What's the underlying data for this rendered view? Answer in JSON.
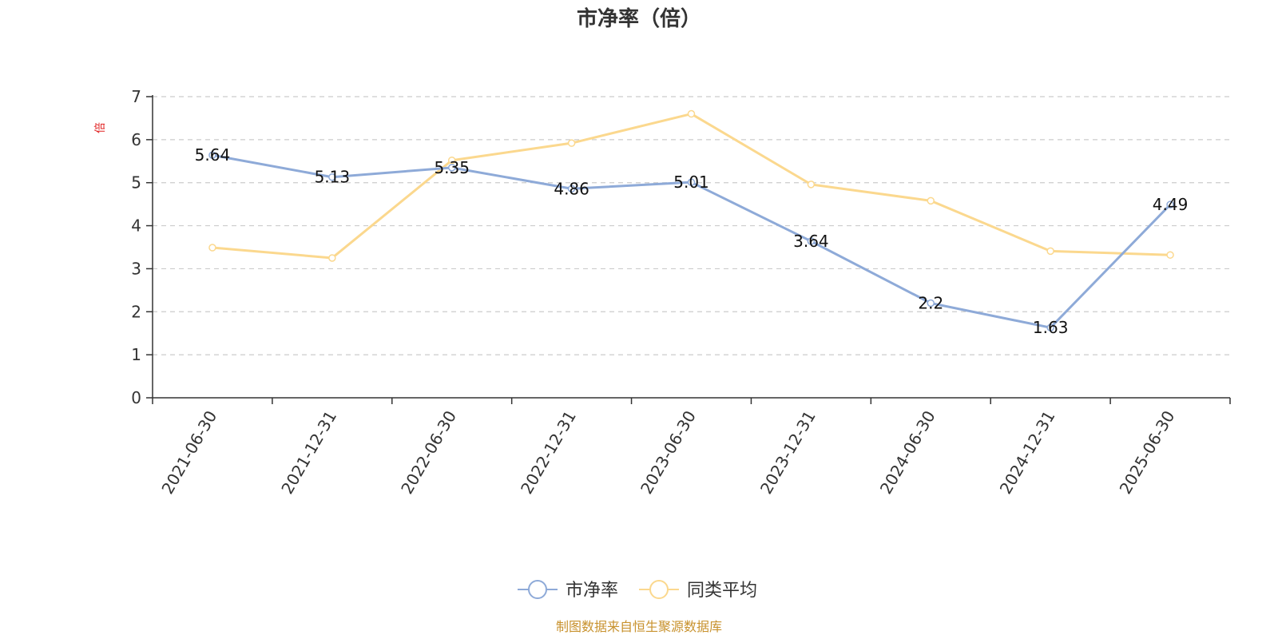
{
  "chart_data": {
    "type": "line",
    "title": "市净率（倍）",
    "ylabel": "倍",
    "ylim": [
      0,
      7
    ],
    "yticks": [
      0,
      1,
      2,
      3,
      4,
      5,
      6,
      7
    ],
    "grid": true,
    "legend_position": "bottom",
    "categories": [
      "2021-06-30",
      "2021-12-31",
      "2022-06-30",
      "2022-12-31",
      "2023-06-30",
      "2023-12-31",
      "2024-06-30",
      "2024-12-31",
      "2025-06-30"
    ],
    "series": [
      {
        "name": "市净率",
        "color": "#8eaad8",
        "values": [
          5.64,
          5.13,
          5.35,
          4.86,
          5.01,
          3.64,
          2.2,
          1.63,
          4.49
        ],
        "labels": [
          "5.64",
          "5.13",
          "5.35",
          "4.86",
          "5.01",
          "3.64",
          "2.2",
          "1.63",
          "4.49"
        ]
      },
      {
        "name": "同类平均",
        "color": "#fbd88e",
        "values": [
          3.49,
          3.25,
          5.52,
          5.92,
          6.6,
          4.96,
          4.58,
          3.41,
          3.32
        ]
      }
    ],
    "source": "制图数据来自恒生聚源数据库"
  }
}
